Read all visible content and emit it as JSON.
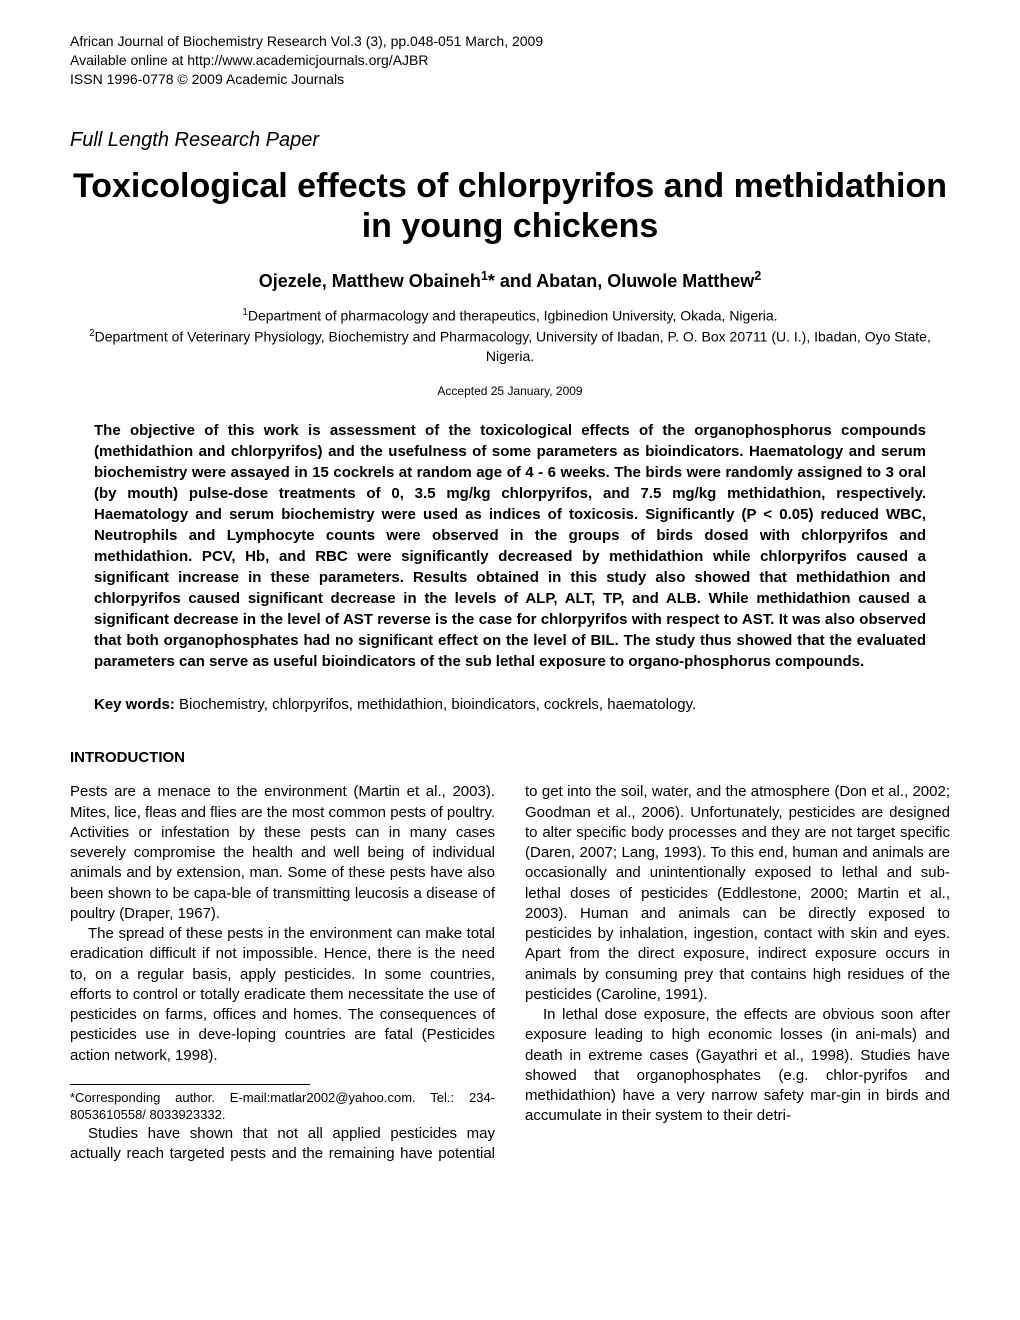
{
  "journal": {
    "line1": "African Journal of Biochemistry Research Vol.3 (3), pp.048-051 March, 2009",
    "line2": "Available online at http://www.academicjournals.org/AJBR",
    "line3": "ISSN 1996-0778 © 2009 Academic Journals"
  },
  "paper_type": "Full Length Research Paper",
  "title": "Toxicological effects of chlorpyrifos and methidathion in young chickens",
  "authors": {
    "name1": "Ojezele, Matthew Obaineh",
    "sup1": "1",
    "star": "*",
    "conj": " and ",
    "name2": "Abatan, Oluwole Matthew",
    "sup2": "2"
  },
  "affiliations": {
    "aff1_sup": "1",
    "aff1": "Department of pharmacology and therapeutics, Igbinedion University, Okada, Nigeria.",
    "aff2_sup": "2",
    "aff2": "Department of Veterinary Physiology, Biochemistry and Pharmacology, University of Ibadan, P. O. Box 20711 (U. I.), Ibadan, Oyo State, Nigeria."
  },
  "accepted": "Accepted 25 January, 2009",
  "abstract": "The objective of this work is assessment of the toxicological effects of the organophosphorus compounds (methidathion and chlorpyrifos) and the usefulness of some parameters as bioindicators. Haematology and serum biochemistry were assayed in 15 cockrels at random age of 4 - 6 weeks. The birds were randomly assigned to 3 oral (by mouth) pulse-dose treatments of 0, 3.5 mg/kg chlorpyrifos, and 7.5 mg/kg methidathion, respectively. Haematology and serum biochemistry were used as indices of toxicosis. Significantly (P < 0.05) reduced WBC, Neutrophils and Lymphocyte counts were observed in the groups of birds dosed with chlorpyrifos and methidathion. PCV, Hb, and RBC were significantly decreased by methidathion while chlorpyrifos caused a significant increase in these parameters. Results obtained in this study also showed that methidathion and chlorpyrifos caused significant decrease in the levels of ALP, ALT, TP, and ALB. While methidathion caused a significant decrease in the level of AST reverse is the case for chlorpyrifos with respect to AST. It was also observed that both organophosphates had no significant effect on the level of BIL. The study thus showed that the evaluated parameters can serve as useful bioindicators of the sub lethal exposure to organo-phosphorus compounds.",
  "keywords": {
    "label": "Key words:",
    "text": " Biochemistry, chlorpyrifos, methidathion, bioindicators, cockrels, haematology."
  },
  "section_heading": "INTRODUCTION",
  "body": {
    "p1": "Pests are a menace to the environment (Martin et al., 2003). Mites, lice, fleas and flies are the most common pests of poultry. Activities or infestation by these pests can in many cases severely compromise the health and well being of individual animals and by extension, man. Some of these pests have also been shown to be capa-ble of transmitting leucosis a disease of poultry (Draper, 1967).",
    "p2": "The spread of these pests in the environment can make total eradication difficult if not impossible. Hence, there is the need to, on a regular basis, apply pesticides. In some countries, efforts to control or totally eradicate them necessitate the use of pesticides on farms, offices and homes. The consequences of pesticides use in deve-loping countries are fatal (Pesticides action network, 1998).",
    "p3": "Studies have shown that not all applied pesticides may actually reach targeted pests and the remaining have potential to get into the soil, water, and the atmosphere (Don et al., 2002; Goodman et al., 2006). Unfortunately, pesticides are designed to alter specific body processes and they are not target specific (Daren, 2007; Lang, 1993). To this end, human and animals are occasionally and unintentionally exposed to lethal and sub-lethal doses of pesticides (Eddlestone, 2000; Martin et al., 2003). Human and animals can be directly exposed to pesticides by inhalation, ingestion, contact with skin and eyes. Apart from the direct exposure, indirect exposure occurs in animals by consuming prey that contains high residues of the pesticides (Caroline, 1991).",
    "p4": "In lethal dose exposure, the effects are obvious soon after exposure leading to high economic losses (in ani-mals) and death in extreme cases (Gayathri et al., 1998). Studies have showed that organophosphates (e.g. chlor-pyrifos and methidathion) have a very narrow safety mar-gin in birds and accumulate in their system to  their  detri-"
  },
  "footnote": "*Corresponding author. E-mail:matlar2002@yahoo.com. Tel.: 234-8053610558/ 8033923332."
}
